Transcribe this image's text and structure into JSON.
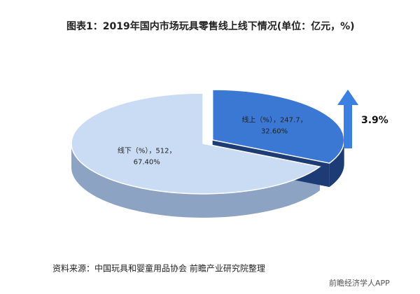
{
  "chart_data": {
    "type": "pie3d",
    "title": "图表1：2019年国内市场玩具零售线上线下情况(单位：亿元，%)",
    "categories": [
      "线上（%）",
      "线下（%）"
    ],
    "values": [
      247.7,
      512
    ],
    "data_labels": [
      [
        "线上（%），247.7，",
        "32.60%"
      ],
      [
        "线下（%），512，",
        "67.40%"
      ]
    ],
    "colors": [
      "#3b78d4",
      "#c9dcf4"
    ],
    "side_colors": [
      "#1d3b74",
      "#8ca3c3"
    ],
    "annotation": "3.9%",
    "annotation_color": "#3b7fe0",
    "source": "资料来源：中国玩具和婴童用品协会 前瞻产业研究院整理",
    "watermark": "前瞻经济学人APP"
  }
}
